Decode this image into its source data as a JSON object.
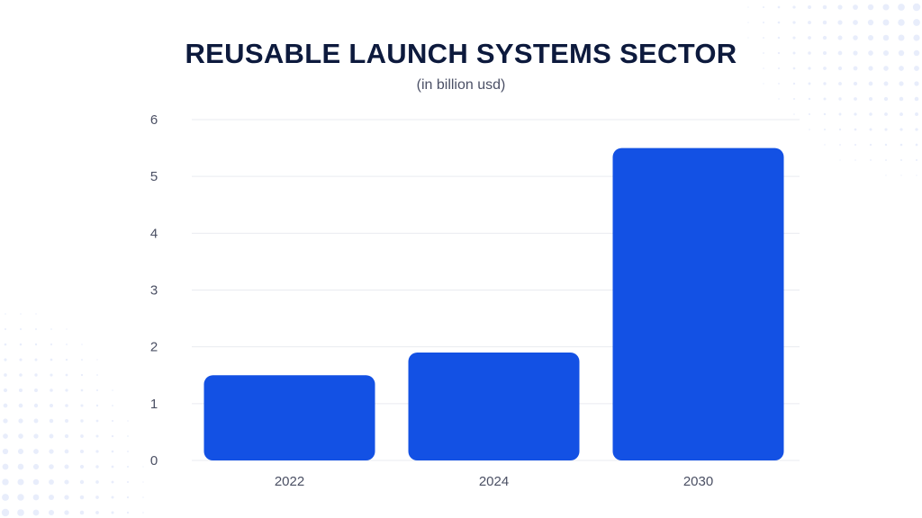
{
  "title": "REUSABLE LAUNCH SYSTEMS SECTOR",
  "subtitle": "(in billion usd)",
  "colors": {
    "bar": "#1351e4",
    "grid": "#e9ebf0",
    "title": "#0d1a3d",
    "dots": "#e8edfb"
  },
  "chart_data": {
    "type": "bar",
    "categories": [
      "2022",
      "2024",
      "2030"
    ],
    "values": [
      1.5,
      1.9,
      5.5
    ],
    "title": "REUSABLE LAUNCH SYSTEMS SECTOR",
    "subtitle": "(in billion usd)",
    "xlabel": "",
    "ylabel": "",
    "ylim": [
      0,
      6
    ],
    "yticks": [
      "0",
      "1",
      "2",
      "3",
      "4",
      "5",
      "6"
    ],
    "grid": true,
    "legend": "none"
  }
}
